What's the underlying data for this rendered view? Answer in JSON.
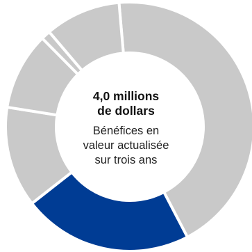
{
  "chart_data": {
    "type": "pie",
    "style": "donut",
    "segments": [
      {
        "value": 0.435,
        "color": "#C9C9C9"
      },
      {
        "value": 0.22,
        "color": "#003C94"
      },
      {
        "value": 0.13,
        "color": "#C9C9C9"
      },
      {
        "value": 0.1,
        "color": "#C9C9C9"
      },
      {
        "value": 0.012,
        "color": "#C9C9C9"
      },
      {
        "value": 0.098,
        "color": "#C9C9C9"
      }
    ],
    "start_angle_deg": -5,
    "center_headline": [
      "4,0 millions",
      "de dollars"
    ],
    "center_subtext": [
      "Bénéfices en",
      "valeur actualisée",
      "sur trois ans"
    ]
  }
}
